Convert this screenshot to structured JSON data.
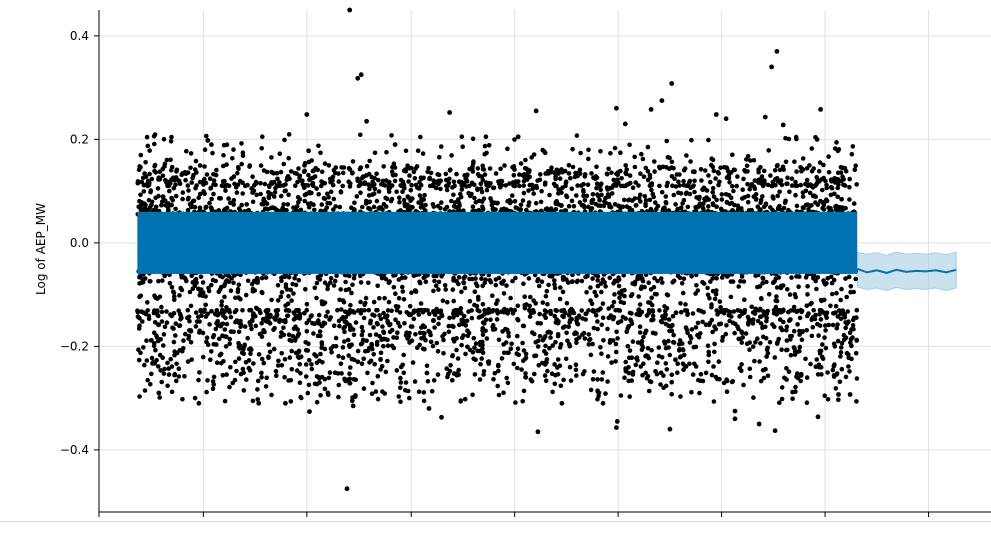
{
  "chart_data": {
    "type": "scatter",
    "title": "",
    "xlabel": "",
    "ylabel": "Log of AEP_MW",
    "ylim": [
      -0.52,
      0.45
    ],
    "yticks": [
      -0.4,
      -0.2,
      0.0,
      0.2,
      0.4
    ],
    "ytick_labels": [
      "−0.4",
      "−0.2",
      "0.0",
      "0.2",
      "0.4"
    ],
    "grid": true,
    "x_tick_labels_visible": false,
    "x_range": [
      0,
      100
    ],
    "x_tick_positions": [
      0,
      11.7,
      23.3,
      35.0,
      46.6,
      58.2,
      69.8,
      81.4,
      93.0
    ],
    "observed": {
      "x_range": [
        4.3,
        85.0
      ],
      "bulk_range": [
        -0.13,
        0.12
      ],
      "outliers": [
        {
          "x": 28.1,
          "y": 0.45
        },
        {
          "x": 27.8,
          "y": -0.475
        },
        {
          "x": 29.4,
          "y": 0.325
        },
        {
          "x": 29.0,
          "y": 0.318
        },
        {
          "x": 76.0,
          "y": 0.37
        },
        {
          "x": 75.4,
          "y": 0.34
        },
        {
          "x": 64.2,
          "y": 0.308
        },
        {
          "x": 63.1,
          "y": 0.275
        },
        {
          "x": 61.9,
          "y": 0.258
        },
        {
          "x": 58.0,
          "y": 0.26
        },
        {
          "x": 80.9,
          "y": 0.258
        },
        {
          "x": 74.7,
          "y": 0.243
        },
        {
          "x": 69.2,
          "y": 0.248
        },
        {
          "x": 23.3,
          "y": 0.248
        },
        {
          "x": 39.3,
          "y": 0.252
        },
        {
          "x": 49.0,
          "y": 0.255
        },
        {
          "x": 59.0,
          "y": 0.23
        },
        {
          "x": 70.3,
          "y": 0.24
        },
        {
          "x": 30.0,
          "y": 0.235
        },
        {
          "x": 12.2,
          "y": 0.198
        },
        {
          "x": 12.6,
          "y": 0.19
        },
        {
          "x": 33.2,
          "y": 0.19
        },
        {
          "x": 23.5,
          "y": 0.178
        },
        {
          "x": 76.7,
          "y": 0.228
        },
        {
          "x": 80.5,
          "y": 0.2
        },
        {
          "x": 47.0,
          "y": 0.205
        },
        {
          "x": 28.4,
          "y": -0.305
        },
        {
          "x": 28.5,
          "y": -0.315
        },
        {
          "x": 23.6,
          "y": -0.326
        },
        {
          "x": 37.0,
          "y": -0.32
        },
        {
          "x": 38.4,
          "y": -0.337
        },
        {
          "x": 49.2,
          "y": -0.365
        },
        {
          "x": 58.0,
          "y": -0.357
        },
        {
          "x": 58.1,
          "y": -0.345
        },
        {
          "x": 64.0,
          "y": -0.36
        },
        {
          "x": 71.3,
          "y": -0.325
        },
        {
          "x": 71.3,
          "y": -0.34
        },
        {
          "x": 75.8,
          "y": -0.363
        },
        {
          "x": 80.6,
          "y": -0.336
        },
        {
          "x": 74.0,
          "y": -0.35
        },
        {
          "x": 11.2,
          "y": -0.31
        },
        {
          "x": 17.9,
          "y": -0.31
        },
        {
          "x": 20.9,
          "y": -0.31
        },
        {
          "x": 51.9,
          "y": -0.31
        },
        {
          "x": 56.5,
          "y": -0.31
        },
        {
          "x": 6.7,
          "y": -0.29
        },
        {
          "x": 84.2,
          "y": -0.293
        },
        {
          "x": 82.9,
          "y": -0.293
        }
      ]
    },
    "fitted": {
      "x_range": [
        4.3,
        85.0
      ],
      "band": [
        -0.06,
        0.06
      ],
      "color": "#0072B2"
    },
    "forecast": {
      "x": [
        85.0,
        86.1,
        87.2,
        88.3,
        89.4,
        90.5,
        91.6,
        92.7,
        93.8,
        95.0,
        96.1
      ],
      "y": [
        -0.05,
        -0.057,
        -0.053,
        -0.058,
        -0.052,
        -0.056,
        -0.054,
        -0.055,
        -0.053,
        -0.057,
        -0.052
      ],
      "lower": [
        -0.085,
        -0.09,
        -0.087,
        -0.092,
        -0.086,
        -0.09,
        -0.088,
        -0.09,
        -0.087,
        -0.092,
        -0.087
      ],
      "upper": [
        -0.018,
        -0.022,
        -0.019,
        -0.024,
        -0.018,
        -0.022,
        -0.02,
        -0.022,
        -0.019,
        -0.023,
        -0.018
      ],
      "line_color": "#0072B2",
      "band_color": "#A6CEE3"
    },
    "point_color": "#000000"
  }
}
